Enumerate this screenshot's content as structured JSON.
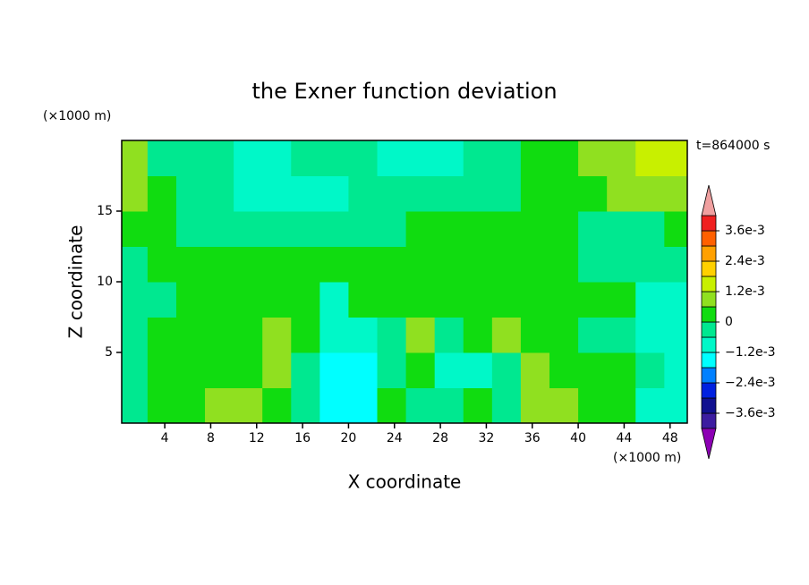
{
  "chart_data": {
    "type": "contour",
    "title": "the Exner function deviation",
    "annotation": "t=864000 s",
    "xlabel": "X coordinate",
    "ylabel": "Z coordinate",
    "x_unit": "(×1000 m)",
    "y_unit": "(×1000 m)",
    "xlim": [
      0.25,
      49.5
    ],
    "ylim": [
      0,
      20
    ],
    "xticks": [
      4,
      8,
      12,
      16,
      20,
      24,
      28,
      32,
      36,
      40,
      44,
      48
    ],
    "yticks": [
      5,
      10,
      15
    ],
    "x": [
      1.25,
      3.75,
      6.25,
      8.75,
      11.25,
      13.75,
      16.25,
      18.75,
      21.25,
      23.75,
      26.25,
      28.75,
      31.25,
      33.75,
      36.25,
      38.75,
      41.25,
      43.75,
      46.25,
      48.75
    ],
    "y": [
      1.25,
      3.75,
      6.25,
      8.75,
      11.25,
      13.75,
      16.25,
      18.75
    ],
    "z": [
      [
        -0.0003,
        0.0003,
        0.0003,
        0.0009,
        0.0009,
        0.0003,
        -0.0003,
        -0.0015,
        -0.0015,
        0.0003,
        -0.0003,
        -0.0003,
        0.0003,
        -0.0003,
        0.0009,
        0.0009,
        0.0003,
        0.0003,
        -0.0009,
        -0.0009
      ],
      [
        -0.0003,
        0.0003,
        0.0003,
        0.0003,
        0.0003,
        0.0009,
        -0.0003,
        -0.0015,
        -0.0015,
        -0.0003,
        0.0003,
        -0.0009,
        -0.0009,
        -0.0003,
        0.0009,
        0.0003,
        0.0003,
        0.0003,
        -0.0003,
        -0.0009
      ],
      [
        -0.0003,
        0.0003,
        0.0003,
        0.0003,
        0.0003,
        0.0009,
        0.0003,
        -0.0009,
        -0.0009,
        -0.0003,
        0.0009,
        -0.0003,
        0.0003,
        0.0009,
        0.0003,
        0.0003,
        -0.0003,
        -0.0003,
        -0.0009,
        -0.0009
      ],
      [
        -0.0003,
        -0.0003,
        0.0003,
        0.0003,
        0.0003,
        0.0003,
        0.0003,
        -0.0009,
        0.0003,
        0.0003,
        0.0003,
        0.0003,
        0.0003,
        0.0003,
        0.0003,
        0.0003,
        0.0003,
        0.0003,
        -0.0009,
        -0.0009
      ],
      [
        -0.0003,
        0.0003,
        0.0003,
        0.0003,
        0.0003,
        0.0003,
        0.0003,
        0.0003,
        0.0003,
        0.0003,
        0.0003,
        0.0003,
        0.0003,
        0.0003,
        0.0003,
        0.0003,
        -0.0003,
        -0.0003,
        -0.0003,
        -0.0003
      ],
      [
        0.0003,
        0.0003,
        -0.0003,
        -0.0003,
        -0.0003,
        -0.0003,
        -0.0003,
        -0.0003,
        -0.0003,
        -0.0003,
        0.0003,
        0.0003,
        0.0003,
        0.0003,
        0.0003,
        0.0003,
        -0.0003,
        -0.0003,
        -0.0003,
        0.0003
      ],
      [
        0.0009,
        0.0003,
        -0.0003,
        -0.0003,
        -0.0009,
        -0.0009,
        -0.0009,
        -0.0009,
        -0.0003,
        -0.0003,
        -0.0003,
        -0.0003,
        -0.0003,
        -0.0003,
        0.0003,
        0.0003,
        0.0003,
        0.0009,
        0.0009,
        0.0009
      ],
      [
        0.0009,
        -0.0003,
        -0.0003,
        -0.0003,
        -0.0009,
        -0.0009,
        -0.0003,
        -0.0003,
        -0.0003,
        -0.0009,
        -0.0009,
        -0.0009,
        -0.0003,
        -0.0003,
        0.0003,
        0.0003,
        0.0009,
        0.0009,
        0.0015,
        0.0015
      ]
    ],
    "levels": [
      -0.0042,
      -0.0036,
      -0.003,
      -0.0024,
      -0.0018,
      -0.0012,
      -0.0006,
      0,
      0.0006,
      0.0012,
      0.0018,
      0.0024,
      0.003,
      0.0036,
      0.0042
    ],
    "colors": [
      "#8c00b4",
      "#3c1ca0",
      "#101090",
      "#0020e0",
      "#0080ff",
      "#00ffff",
      "#00f8c8",
      "#00e890",
      "#10dc10",
      "#90e020",
      "#c8f000",
      "#ffd000",
      "#ffa000",
      "#ff6000",
      "#f02020",
      "#f0a0a0"
    ],
    "colorbar_ticks": [
      {
        "value": 0.0036,
        "label": "3.6e-3"
      },
      {
        "value": 0.0024,
        "label": "2.4e-3"
      },
      {
        "value": 0.0012,
        "label": "1.2e-3"
      },
      0,
      {
        "value": -0.0012,
        "label": "−1.2e-3"
      },
      {
        "value": -0.0024,
        "label": "−2.4e-3"
      },
      {
        "value": -0.0036,
        "label": "−3.6e-3"
      }
    ]
  }
}
